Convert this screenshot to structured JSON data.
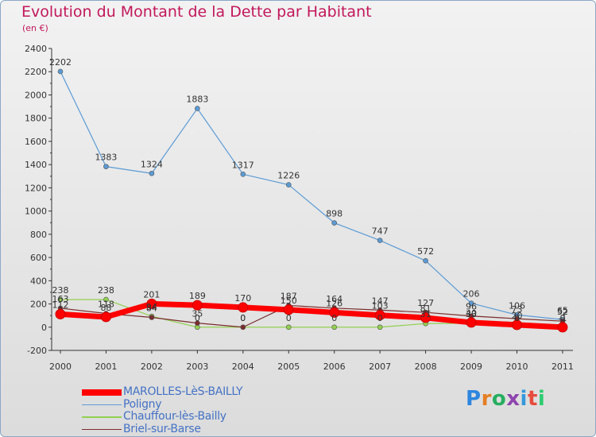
{
  "title": "Evolution du Montant de la Dette par Habitant",
  "unit": "(en €)",
  "logo": [
    "P",
    "r",
    "o",
    "x",
    "i",
    "t",
    "i"
  ],
  "logo_colors": [
    "#2e86de",
    "#e67e22",
    "#27ae60",
    "#8e44ad",
    "#3498db",
    "#e74c3c",
    "#2ecc71"
  ],
  "chart_data": {
    "type": "line",
    "title": "Evolution du Montant de la Dette par Habitant",
    "ylabel": "(en €)",
    "xlabel": "",
    "x": [
      "2000",
      "2001",
      "2002",
      "2003",
      "2004",
      "2005",
      "2006",
      "2007",
      "2008",
      "2009",
      "2010",
      "2011"
    ],
    "ylim": [
      -200,
      2400
    ],
    "yticks": [
      -200,
      0,
      200,
      400,
      600,
      800,
      1000,
      1200,
      1400,
      1600,
      1800,
      2000,
      2200,
      2400
    ],
    "grid": false,
    "legend_position": "bottom",
    "series": [
      {
        "name": "MAROLLES-LèS-BAILLY",
        "values": [
          112,
          88,
          201,
          189,
          170,
          150,
          126,
          103,
          81,
          40,
          20,
          -1
        ],
        "labels": [
          "112",
          "88",
          "201",
          "189",
          "170",
          "150",
          "126",
          "103",
          "81",
          "40",
          "20",
          "-1"
        ],
        "color": "#ff0000",
        "width": 7,
        "marker": 6
      },
      {
        "name": "Poligny",
        "values": [
          2202,
          1383,
          1324,
          1883,
          1317,
          1226,
          898,
          747,
          572,
          206,
          106,
          65
        ],
        "labels": [
          "2202",
          "1383",
          "1324",
          "1883",
          "1317",
          "1226",
          "898",
          "747",
          "572",
          "206",
          "106",
          "65"
        ],
        "color": "#5b9bd5",
        "width": 1.2,
        "marker": 3
      },
      {
        "name": "Chauffour-lès-Bailly",
        "values": [
          238,
          238,
          94,
          0,
          0,
          0,
          0,
          0,
          31,
          33,
          0,
          0
        ],
        "labels": [
          "238",
          "238",
          "94",
          "0",
          "0",
          "0",
          "0",
          "0",
          "31",
          "33",
          "0",
          "0"
        ],
        "color": "#92d050",
        "width": 1.2,
        "marker": 3
      },
      {
        "name": "Briel-sur-Barse",
        "values": [
          163,
          118,
          84,
          35,
          0,
          187,
          164,
          147,
          127,
          96,
          73,
          52
        ],
        "labels": [
          "163",
          "118",
          "84",
          "35",
          "0",
          "187",
          "164",
          "147",
          "127",
          "96",
          "73",
          "52"
        ],
        "color": "#7b2c2c",
        "width": 1.2,
        "marker": 3
      }
    ]
  }
}
